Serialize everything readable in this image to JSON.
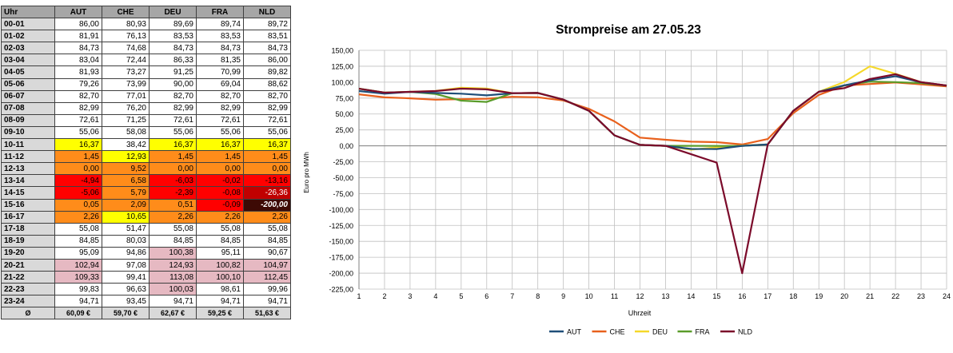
{
  "table": {
    "header": [
      "Uhr",
      "AUT",
      "CHE",
      "DEU",
      "FRA",
      "NLD"
    ],
    "rows": [
      {
        "h": "00-01",
        "v": [
          "86,00",
          "80,93",
          "89,69",
          "89,74",
          "89,72"
        ],
        "c": [
          "",
          "",
          "",
          "",
          ""
        ]
      },
      {
        "h": "01-02",
        "v": [
          "81,91",
          "76,13",
          "83,53",
          "83,53",
          "83,51"
        ],
        "c": [
          "",
          "",
          "",
          "",
          ""
        ]
      },
      {
        "h": "02-03",
        "v": [
          "84,73",
          "74,68",
          "84,73",
          "84,73",
          "84,73"
        ],
        "c": [
          "",
          "",
          "",
          "",
          ""
        ]
      },
      {
        "h": "03-04",
        "v": [
          "83,04",
          "72,44",
          "86,33",
          "81,35",
          "86,00"
        ],
        "c": [
          "",
          "",
          "",
          "",
          ""
        ]
      },
      {
        "h": "04-05",
        "v": [
          "81,93",
          "73,27",
          "91,25",
          "70,99",
          "89,82"
        ],
        "c": [
          "",
          "",
          "",
          "",
          ""
        ]
      },
      {
        "h": "05-06",
        "v": [
          "79,26",
          "73,99",
          "90,00",
          "69,04",
          "88,62"
        ],
        "c": [
          "",
          "",
          "",
          "",
          ""
        ]
      },
      {
        "h": "06-07",
        "v": [
          "82,70",
          "77,01",
          "82,70",
          "82,70",
          "82,70"
        ],
        "c": [
          "",
          "",
          "",
          "",
          ""
        ]
      },
      {
        "h": "07-08",
        "v": [
          "82,99",
          "76,20",
          "82,99",
          "82,99",
          "82,99"
        ],
        "c": [
          "",
          "",
          "",
          "",
          ""
        ]
      },
      {
        "h": "08-09",
        "v": [
          "72,61",
          "71,25",
          "72,61",
          "72,61",
          "72,61"
        ],
        "c": [
          "",
          "",
          "",
          "",
          ""
        ]
      },
      {
        "h": "09-10",
        "v": [
          "55,06",
          "58,08",
          "55,06",
          "55,06",
          "55,06"
        ],
        "c": [
          "",
          "",
          "",
          "",
          ""
        ]
      },
      {
        "h": "10-11",
        "v": [
          "16,37",
          "38,42",
          "16,37",
          "16,37",
          "16,37"
        ],
        "c": [
          "yellow",
          "",
          "yellow",
          "yellow",
          "yellow"
        ]
      },
      {
        "h": "11-12",
        "v": [
          "1,45",
          "12,93",
          "1,45",
          "1,45",
          "1,45"
        ],
        "c": [
          "orange",
          "yellow",
          "orange",
          "orange",
          "orange"
        ]
      },
      {
        "h": "12-13",
        "v": [
          "0,00",
          "9,52",
          "0,00",
          "0,00",
          "0,00"
        ],
        "c": [
          "orange",
          "orange",
          "orange",
          "orange",
          "orange"
        ]
      },
      {
        "h": "13-14",
        "v": [
          "-4,94",
          "6,58",
          "-6,03",
          "-0,02",
          "-13,16"
        ],
        "c": [
          "red",
          "orange",
          "red",
          "red",
          "red"
        ]
      },
      {
        "h": "14-15",
        "v": [
          "-5,06",
          "5,79",
          "-2,39",
          "-0,08",
          "-26,36"
        ],
        "c": [
          "red",
          "orange",
          "red",
          "red",
          "darkred"
        ]
      },
      {
        "h": "15-16",
        "v": [
          "0,05",
          "2,09",
          "0,51",
          "-0,09",
          "-200,00"
        ],
        "c": [
          "orange",
          "orange",
          "orange",
          "red",
          "maroon"
        ]
      },
      {
        "h": "16-17",
        "v": [
          "2,26",
          "10,65",
          "2,26",
          "2,26",
          "2,26"
        ],
        "c": [
          "orange",
          "yellow",
          "orange",
          "orange",
          "orange"
        ]
      },
      {
        "h": "17-18",
        "v": [
          "55,08",
          "51,47",
          "55,08",
          "55,08",
          "55,08"
        ],
        "c": [
          "",
          "",
          "",
          "",
          ""
        ]
      },
      {
        "h": "18-19",
        "v": [
          "84,85",
          "80,03",
          "84,85",
          "84,85",
          "84,85"
        ],
        "c": [
          "",
          "",
          "",
          "",
          ""
        ]
      },
      {
        "h": "19-20",
        "v": [
          "95,09",
          "94,86",
          "100,38",
          "95,11",
          "90,67"
        ],
        "c": [
          "",
          "",
          "pink",
          "",
          ""
        ]
      },
      {
        "h": "20-21",
        "v": [
          "102,94",
          "97,08",
          "124,93",
          "100,82",
          "104,97"
        ],
        "c": [
          "pink",
          "",
          "pink",
          "pink",
          "pink"
        ]
      },
      {
        "h": "21-22",
        "v": [
          "109,33",
          "99,41",
          "113,08",
          "100,10",
          "112,45"
        ],
        "c": [
          "pink",
          "",
          "pink",
          "pink",
          "pink"
        ]
      },
      {
        "h": "22-23",
        "v": [
          "99,83",
          "96,63",
          "100,03",
          "98,61",
          "99,96"
        ],
        "c": [
          "",
          "",
          "pink",
          "",
          ""
        ]
      },
      {
        "h": "23-24",
        "v": [
          "94,71",
          "93,45",
          "94,71",
          "94,71",
          "94,71"
        ],
        "c": [
          "",
          "",
          "",
          "",
          ""
        ]
      }
    ],
    "avg_label": "Ø",
    "avg": [
      "60,09 €",
      "59,70 €",
      "62,67 €",
      "59,25 €",
      "51,63 €"
    ]
  },
  "colors": {
    "yellow": "#ffff00",
    "orange": "#ff8c1a",
    "red": "#ff0000",
    "darkred": "#c00000",
    "maroon": "#3d0a05",
    "pink": "#e6b9c2",
    "AUT": "#1f4e79",
    "CHE": "#e8601c",
    "DEU": "#f5d82a",
    "FRA": "#5a9c2a",
    "NLD": "#7b0a2a"
  },
  "chart_data": {
    "type": "line",
    "title": "Strompreise am 27.05.23",
    "xlabel": "Uhrzeit",
    "ylabel": "Euro pro MWh",
    "x": [
      1,
      2,
      3,
      4,
      5,
      6,
      7,
      8,
      9,
      10,
      11,
      12,
      13,
      14,
      15,
      16,
      17,
      18,
      19,
      20,
      21,
      22,
      23,
      24
    ],
    "ylim": [
      -225,
      150
    ],
    "yticks": [
      "150,00",
      "125,00",
      "100,00",
      "75,00",
      "50,00",
      "25,00",
      "0,00",
      "-25,00",
      "-50,00",
      "-75,00",
      "-100,00",
      "-125,00",
      "-150,00",
      "-175,00",
      "-200,00",
      "-225,00"
    ],
    "grid": true,
    "legend_position": "bottom",
    "series": [
      {
        "name": "AUT",
        "values": [
          86.0,
          81.91,
          84.73,
          83.04,
          81.93,
          79.26,
          82.7,
          82.99,
          72.61,
          55.06,
          16.37,
          1.45,
          0.0,
          -4.94,
          -5.06,
          0.05,
          2.26,
          55.08,
          84.85,
          95.09,
          102.94,
          109.33,
          99.83,
          94.71
        ]
      },
      {
        "name": "CHE",
        "values": [
          80.93,
          76.13,
          74.68,
          72.44,
          73.27,
          73.99,
          77.01,
          76.2,
          71.25,
          58.08,
          38.42,
          12.93,
          9.52,
          6.58,
          5.79,
          2.09,
          10.65,
          51.47,
          80.03,
          94.86,
          97.08,
          99.41,
          96.63,
          93.45
        ]
      },
      {
        "name": "DEU",
        "values": [
          89.69,
          83.53,
          84.73,
          86.33,
          91.25,
          90.0,
          82.7,
          82.99,
          72.61,
          55.06,
          16.37,
          1.45,
          0.0,
          -6.03,
          -2.39,
          0.51,
          2.26,
          55.08,
          84.85,
          100.38,
          124.93,
          113.08,
          100.03,
          94.71
        ]
      },
      {
        "name": "FRA",
        "values": [
          89.74,
          83.53,
          84.73,
          81.35,
          70.99,
          69.04,
          82.7,
          82.99,
          72.61,
          55.06,
          16.37,
          1.45,
          0.0,
          -0.02,
          -0.08,
          -0.09,
          2.26,
          55.08,
          84.85,
          95.11,
          100.82,
          100.1,
          98.61,
          94.71
        ]
      },
      {
        "name": "NLD",
        "values": [
          89.72,
          83.51,
          84.73,
          86.0,
          89.82,
          88.62,
          82.7,
          82.99,
          72.61,
          55.06,
          16.37,
          1.45,
          0.0,
          -13.16,
          -26.36,
          -200.0,
          2.26,
          55.08,
          84.85,
          90.67,
          104.97,
          112.45,
          99.96,
          94.71
        ]
      }
    ]
  }
}
